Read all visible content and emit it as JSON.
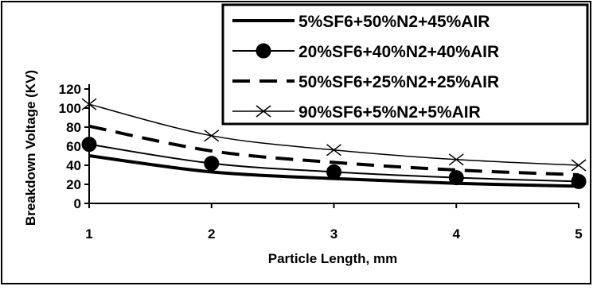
{
  "chart_data": {
    "type": "line",
    "title": "",
    "xlabel": "Particle Length, mm",
    "ylabel": "Breakdown Voltage (KV)",
    "x": [
      1,
      2,
      3,
      4,
      5
    ],
    "xlim": [
      1,
      5
    ],
    "ylim": [
      0,
      120
    ],
    "x_ticks": [
      "1",
      "2",
      "3",
      "4",
      "5"
    ],
    "y_ticks": [
      "0",
      "20",
      "40",
      "60",
      "80",
      "100",
      "120"
    ],
    "grid": false,
    "legend_placement": "top-right",
    "series": [
      {
        "name": "5%SF6+50%N2+45%AIR",
        "values": [
          50,
          33,
          26,
          21,
          18
        ],
        "style": "solid-thick",
        "color": "#000000"
      },
      {
        "name": "20%SF6+40%N2+40%AIR",
        "values": [
          62,
          42,
          33,
          27,
          23
        ],
        "style": "line-circle-markers",
        "color": "#000000"
      },
      {
        "name": "50%SF6+25%N2+25%AIR",
        "values": [
          81,
          55,
          43,
          35,
          30
        ],
        "style": "dashed-thick",
        "color": "#000000"
      },
      {
        "name": "90%SF6+5%N2+5%AIR",
        "values": [
          104,
          71,
          56,
          46,
          40
        ],
        "style": "line-x-markers",
        "color": "#000000"
      }
    ]
  }
}
